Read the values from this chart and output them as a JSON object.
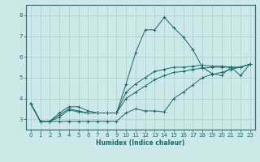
{
  "xlabel": "Humidex (Indice chaleur)",
  "ylabel": "",
  "xlim": [
    -0.5,
    23.5
  ],
  "ylim": [
    2.5,
    8.5
  ],
  "xticks": [
    0,
    1,
    2,
    3,
    4,
    5,
    6,
    7,
    8,
    9,
    10,
    11,
    12,
    13,
    14,
    15,
    16,
    17,
    18,
    19,
    20,
    21,
    22,
    23
  ],
  "yticks": [
    3,
    4,
    5,
    6,
    7,
    8
  ],
  "bg_color": "#cce8e8",
  "grid_color": "#aacece",
  "line_color": "#1a6b6b",
  "spine_color": "#336666",
  "lines": [
    [
      3.75,
      2.9,
      2.9,
      3.3,
      3.6,
      3.6,
      3.4,
      3.3,
      3.3,
      3.3,
      4.7,
      6.2,
      7.3,
      7.3,
      7.9,
      7.4,
      6.95,
      6.35,
      5.5,
      5.2,
      5.1,
      5.5,
      5.1,
      5.65
    ],
    [
      3.75,
      2.9,
      2.9,
      2.9,
      2.9,
      2.9,
      2.9,
      2.9,
      2.9,
      2.9,
      3.3,
      3.5,
      3.4,
      3.4,
      3.35,
      4.0,
      4.3,
      4.65,
      5.0,
      5.15,
      5.25,
      5.4,
      5.5,
      5.65
    ],
    [
      3.75,
      2.9,
      2.9,
      3.2,
      3.5,
      3.4,
      3.3,
      3.3,
      3.3,
      3.3,
      4.3,
      4.7,
      5.0,
      5.3,
      5.4,
      5.5,
      5.5,
      5.55,
      5.6,
      5.55,
      5.55,
      5.5,
      5.5,
      5.65
    ],
    [
      3.75,
      2.9,
      2.9,
      3.1,
      3.45,
      3.35,
      3.3,
      3.3,
      3.3,
      3.3,
      4.0,
      4.3,
      4.6,
      4.9,
      5.1,
      5.25,
      5.3,
      5.4,
      5.45,
      5.5,
      5.5,
      5.5,
      5.5,
      5.65
    ]
  ]
}
